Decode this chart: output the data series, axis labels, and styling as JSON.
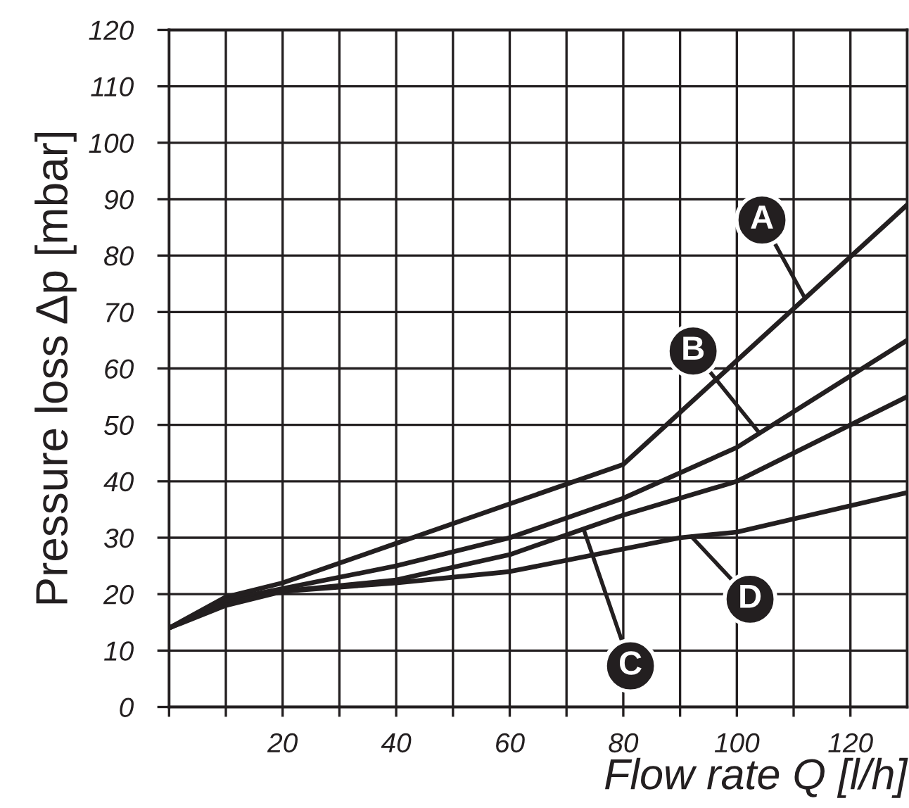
{
  "chart_data": {
    "type": "line",
    "xlabel": "Flow rate Q [l/h]",
    "ylabel": "Pressure loss Δp [mbar]",
    "x": [
      0,
      10,
      20,
      40,
      60,
      80,
      90,
      100,
      130
    ],
    "series": [
      {
        "name": "A",
        "color": "#231f20",
        "values": [
          14,
          19.5,
          22,
          29,
          36,
          43,
          null,
          null,
          89
        ]
      },
      {
        "name": "B",
        "color": "#231f20",
        "values": [
          14,
          19,
          21,
          25,
          30,
          37,
          null,
          46,
          65
        ]
      },
      {
        "name": "C",
        "color": "#231f20",
        "values": [
          14,
          18.5,
          20.5,
          22.5,
          27,
          34,
          null,
          40,
          55
        ]
      },
      {
        "name": "D",
        "color": "#231f20",
        "values": [
          14,
          18,
          20.5,
          22,
          24,
          28,
          30,
          31,
          38
        ]
      }
    ],
    "xlim": [
      0,
      130
    ],
    "ylim": [
      0,
      120
    ],
    "xticks": [
      {
        "value": 0,
        "label": null
      },
      {
        "value": 10,
        "label": null
      },
      20,
      {
        "value": 30,
        "label": null
      },
      40,
      {
        "value": 50,
        "label": null
      },
      60,
      {
        "value": 70,
        "label": null
      },
      80,
      {
        "value": 90,
        "label": null
      },
      100,
      {
        "value": 110,
        "label": null
      },
      120
    ],
    "yticks": [
      0,
      10,
      20,
      30,
      40,
      50,
      60,
      70,
      80,
      90,
      100,
      110,
      120
    ],
    "grid": true,
    "marker": "none",
    "line_style": "solid"
  }
}
